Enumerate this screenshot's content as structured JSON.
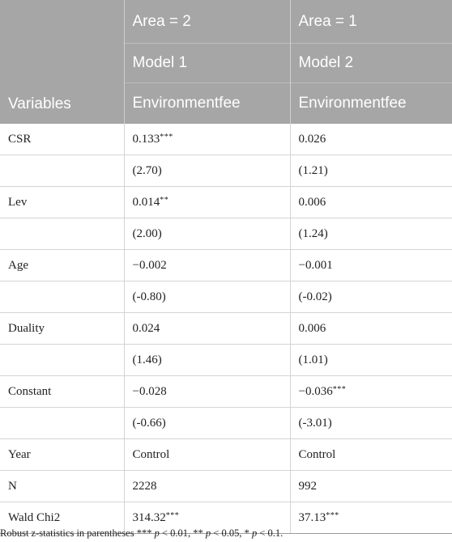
{
  "header": {
    "col1": "Variables",
    "col2": {
      "area": "Area = 2",
      "model": "Model 1",
      "dep": "Environmentfee"
    },
    "col3": {
      "area": "Area = 1",
      "model": "Model 2",
      "dep": "Environmentfee"
    }
  },
  "rows": [
    {
      "label": "CSR",
      "c2": "0.133",
      "c2_stars": "***",
      "c3": "0.026",
      "c3_stars": ""
    },
    {
      "label": "",
      "c2": "(2.70)",
      "c2_stars": "",
      "c3": "(1.21)",
      "c3_stars": ""
    },
    {
      "label": "Lev",
      "c2": "0.014",
      "c2_stars": "**",
      "c3": "0.006",
      "c3_stars": ""
    },
    {
      "label": "",
      "c2": "(2.00)",
      "c2_stars": "",
      "c3": "(1.24)",
      "c3_stars": ""
    },
    {
      "label": "Age",
      "c2": "−0.002",
      "c2_stars": "",
      "c3": "−0.001",
      "c3_stars": ""
    },
    {
      "label": "",
      "c2": "(-0.80)",
      "c2_stars": "",
      "c3": "(-0.02)",
      "c3_stars": ""
    },
    {
      "label": "Duality",
      "c2": "0.024",
      "c2_stars": "",
      "c3": "0.006",
      "c3_stars": ""
    },
    {
      "label": "",
      "c2": "(1.46)",
      "c2_stars": "",
      "c3": "(1.01)",
      "c3_stars": ""
    },
    {
      "label": "Constant",
      "c2": "−0.028",
      "c2_stars": "",
      "c3": "−0.036",
      "c3_stars": "***"
    },
    {
      "label": "",
      "c2": "(-0.66)",
      "c2_stars": "",
      "c3": "(-3.01)",
      "c3_stars": ""
    },
    {
      "label": "Year",
      "c2": "Control",
      "c2_stars": "",
      "c3": "Control",
      "c3_stars": ""
    },
    {
      "label": "N",
      "c2": "2228",
      "c2_stars": "",
      "c3": "992",
      "c3_stars": ""
    },
    {
      "label": "Wald Chi2",
      "c2": "314.32",
      "c2_stars": "***",
      "c3": "37.13",
      "c3_stars": "***"
    }
  ],
  "note": {
    "prefix": "Robust z-statistics in parentheses *** ",
    "p1": "p",
    "t1": " < 0.01, ** ",
    "p2": "p",
    "t2": " < 0.05, * ",
    "p3": "p",
    "t3": " < 0.1."
  }
}
